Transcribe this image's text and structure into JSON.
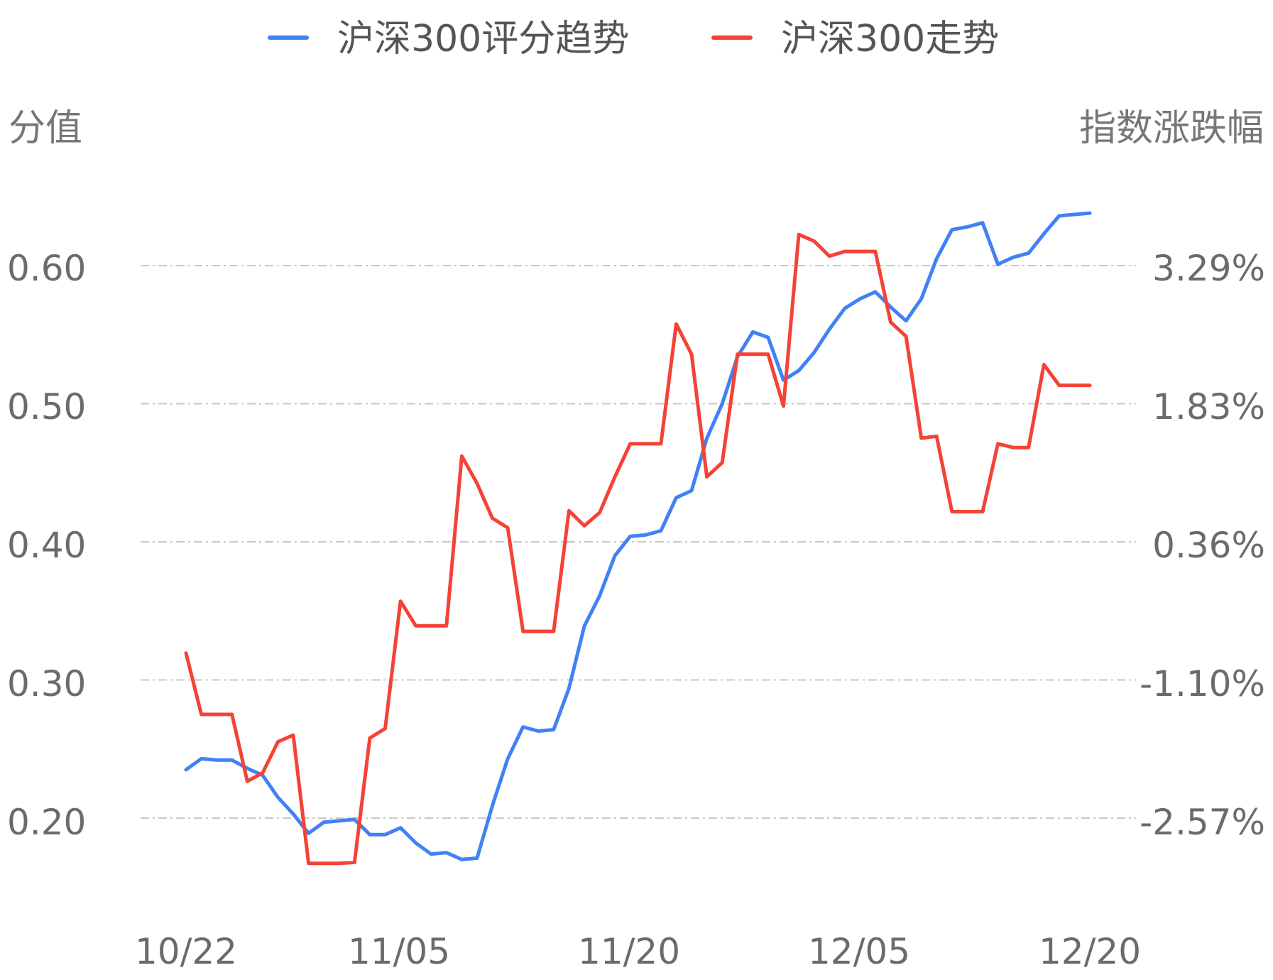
{
  "chart_data": {
    "type": "line",
    "legend": {
      "placement": "top-center",
      "items": [
        {
          "label": "沪深300评分趋势",
          "color": "#4280f5"
        },
        {
          "label": "沪深300走势",
          "color": "#f44336"
        }
      ]
    },
    "left_axis": {
      "title": "分值",
      "ticks": [
        "0.60",
        "0.50",
        "0.40",
        "0.30",
        "0.20"
      ],
      "tick_values": [
        0.6,
        0.5,
        0.4,
        0.3,
        0.2
      ],
      "range": [
        0.135,
        0.68
      ]
    },
    "right_axis": {
      "title": "指数涨跌幅",
      "ticks": [
        "3.29%",
        "1.83%",
        "0.36%",
        "-1.10%",
        "-2.57%"
      ],
      "tick_values": [
        3.29,
        1.83,
        0.36,
        -1.1,
        -2.57
      ]
    },
    "x_ticks": [
      "10/22",
      "11/05",
      "11/20",
      "12/05",
      "12/20"
    ],
    "x_tick_indices": [
      0,
      14,
      29,
      44,
      59
    ],
    "grid": true,
    "series": [
      {
        "name": "沪深300评分趋势",
        "axis": "left",
        "color": "#4280f5",
        "values": [
          0.235,
          0.243,
          0.242,
          0.242,
          0.236,
          0.231,
          0.215,
          0.203,
          0.189,
          0.197,
          0.198,
          0.199,
          0.188,
          0.188,
          0.193,
          0.182,
          0.174,
          0.175,
          0.17,
          0.171,
          0.209,
          0.243,
          0.266,
          0.263,
          0.264,
          0.294,
          0.339,
          0.361,
          0.39,
          0.404,
          0.405,
          0.408,
          0.432,
          0.437,
          0.475,
          0.5,
          0.534,
          0.552,
          0.548,
          0.517,
          0.524,
          0.537,
          0.554,
          0.569,
          0.576,
          0.581,
          0.57,
          0.56,
          0.576,
          0.605,
          0.626,
          0.628,
          0.631,
          0.601,
          0.606,
          0.609,
          0.623,
          0.636,
          0.637,
          0.638
        ]
      },
      {
        "name": "沪深300走势",
        "axis": "right",
        "color": "#f44336",
        "values": [
          -0.82,
          -1.47,
          -1.47,
          -1.47,
          -2.18,
          -2.09,
          -1.76,
          -1.69,
          -3.05,
          -3.05,
          -3.05,
          -3.04,
          -1.72,
          -1.62,
          -0.27,
          -0.53,
          -0.53,
          -0.53,
          1.27,
          0.98,
          0.61,
          0.51,
          -0.59,
          -0.59,
          -0.59,
          0.69,
          0.53,
          0.67,
          1.05,
          1.4,
          1.4,
          1.4,
          2.67,
          2.35,
          1.05,
          1.2,
          2.35,
          2.35,
          2.35,
          1.8,
          3.62,
          3.55,
          3.39,
          3.44,
          3.44,
          3.44,
          2.69,
          2.54,
          1.46,
          1.48,
          0.68,
          0.68,
          0.68,
          1.4,
          1.36,
          1.36,
          2.24,
          2.02,
          2.02,
          2.02
        ]
      }
    ]
  }
}
